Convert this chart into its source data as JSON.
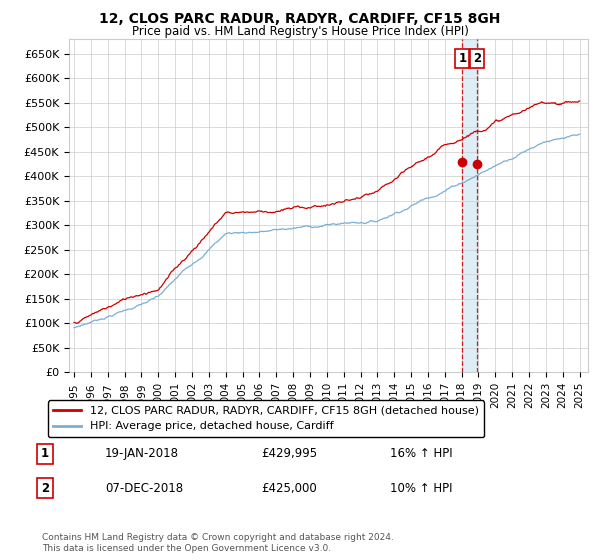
{
  "title": "12, CLOS PARC RADUR, RADYR, CARDIFF, CF15 8GH",
  "subtitle": "Price paid vs. HM Land Registry's House Price Index (HPI)",
  "ylim": [
    0,
    680000
  ],
  "yticks": [
    0,
    50000,
    100000,
    150000,
    200000,
    250000,
    300000,
    350000,
    400000,
    450000,
    500000,
    550000,
    600000,
    650000
  ],
  "ytick_labels": [
    "£0",
    "£50K",
    "£100K",
    "£150K",
    "£200K",
    "£250K",
    "£300K",
    "£350K",
    "£400K",
    "£450K",
    "£500K",
    "£550K",
    "£600K",
    "£650K"
  ],
  "legend1_label": "12, CLOS PARC RADUR, RADYR, CARDIFF, CF15 8GH (detached house)",
  "legend2_label": "HPI: Average price, detached house, Cardiff",
  "line1_color": "#cc0000",
  "line2_color": "#7bafd4",
  "vline_color": "#cc0000",
  "shade_color": "#d0e8f5",
  "marker1_x": 2018.05,
  "marker1_y": 429995,
  "marker2_x": 2018.92,
  "marker2_y": 425000,
  "vline_x1": 2018.05,
  "vline_x2": 2018.92,
  "annotation1_num": "1",
  "annotation1_date": "19-JAN-2018",
  "annotation1_price": "£429,995",
  "annotation1_hpi": "16% ↑ HPI",
  "annotation2_num": "2",
  "annotation2_date": "07-DEC-2018",
  "annotation2_price": "£425,000",
  "annotation2_hpi": "10% ↑ HPI",
  "copyright_text": "Contains HM Land Registry data © Crown copyright and database right 2024.\nThis data is licensed under the Open Government Licence v3.0.",
  "background_color": "#ffffff",
  "grid_color": "#cccccc",
  "xlim_start": 1994.7,
  "xlim_end": 2025.5
}
